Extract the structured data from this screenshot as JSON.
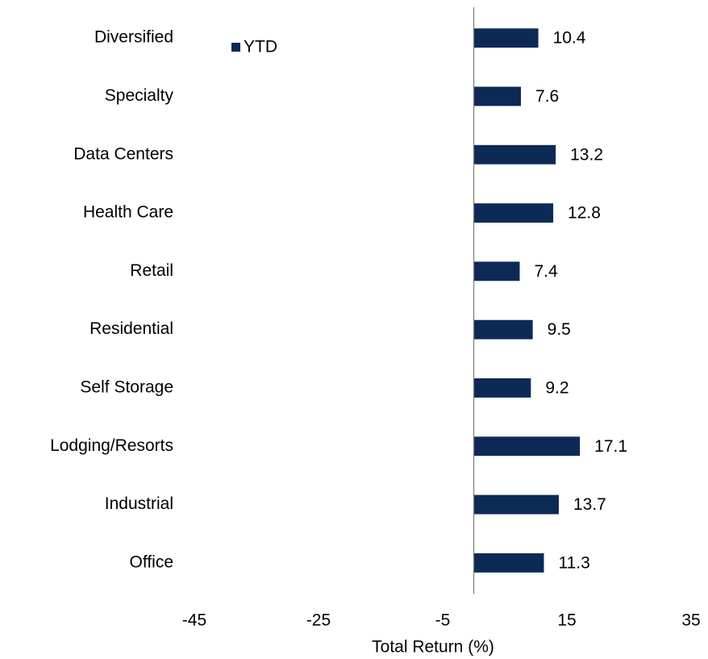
{
  "chart_data": {
    "type": "bar",
    "orientation": "horizontal",
    "x_label": "Total Return (%)",
    "categories": [
      "Diversified",
      "Specialty",
      "Data Centers",
      "Health Care",
      "Retail",
      "Residential",
      "Self Storage",
      "Lodging/Resorts",
      "Industrial",
      "Office"
    ],
    "series": [
      {
        "name": "YTD",
        "color": "#0c2a55",
        "values": [
          10.4,
          7.6,
          13.2,
          12.8,
          7.4,
          9.5,
          9.2,
          17.1,
          13.7,
          11.3
        ]
      }
    ],
    "xlim": [
      -45,
      35
    ],
    "xticks": [
      -45,
      -25,
      -5,
      15,
      35
    ],
    "legend": "upper-left",
    "grid": false
  }
}
